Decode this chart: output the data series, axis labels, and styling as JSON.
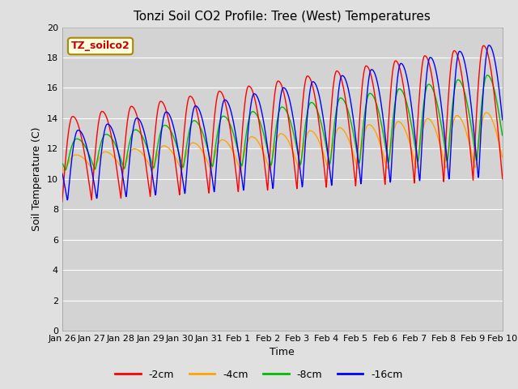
{
  "title": "Tonzi Soil CO2 Profile: Tree (West) Temperatures",
  "ylabel": "Soil Temperature (C)",
  "xlabel": "Time",
  "legend_label": "TZ_soilco2",
  "series_labels": [
    "-2cm",
    "-4cm",
    "-8cm",
    "-16cm"
  ],
  "series_colors": [
    "#ff0000",
    "#ffa500",
    "#00bb00",
    "#0000ff"
  ],
  "ylim": [
    0,
    20
  ],
  "tick_labels": [
    "Jan 26",
    "Jan 27",
    "Jan 28",
    "Jan 29",
    "Jan 30",
    "Jan 31",
    "Feb 1",
    "Feb 2",
    "Feb 3",
    "Feb 4",
    "Feb 5",
    "Feb 6",
    "Feb 7",
    "Feb 8",
    "Feb 9",
    "Feb 10"
  ],
  "bg_color": "#e0e0e0",
  "plot_bg_color": "#d3d3d3",
  "grid_color": "#ffffff",
  "title_fontsize": 11,
  "axis_fontsize": 9,
  "tick_fontsize": 8
}
